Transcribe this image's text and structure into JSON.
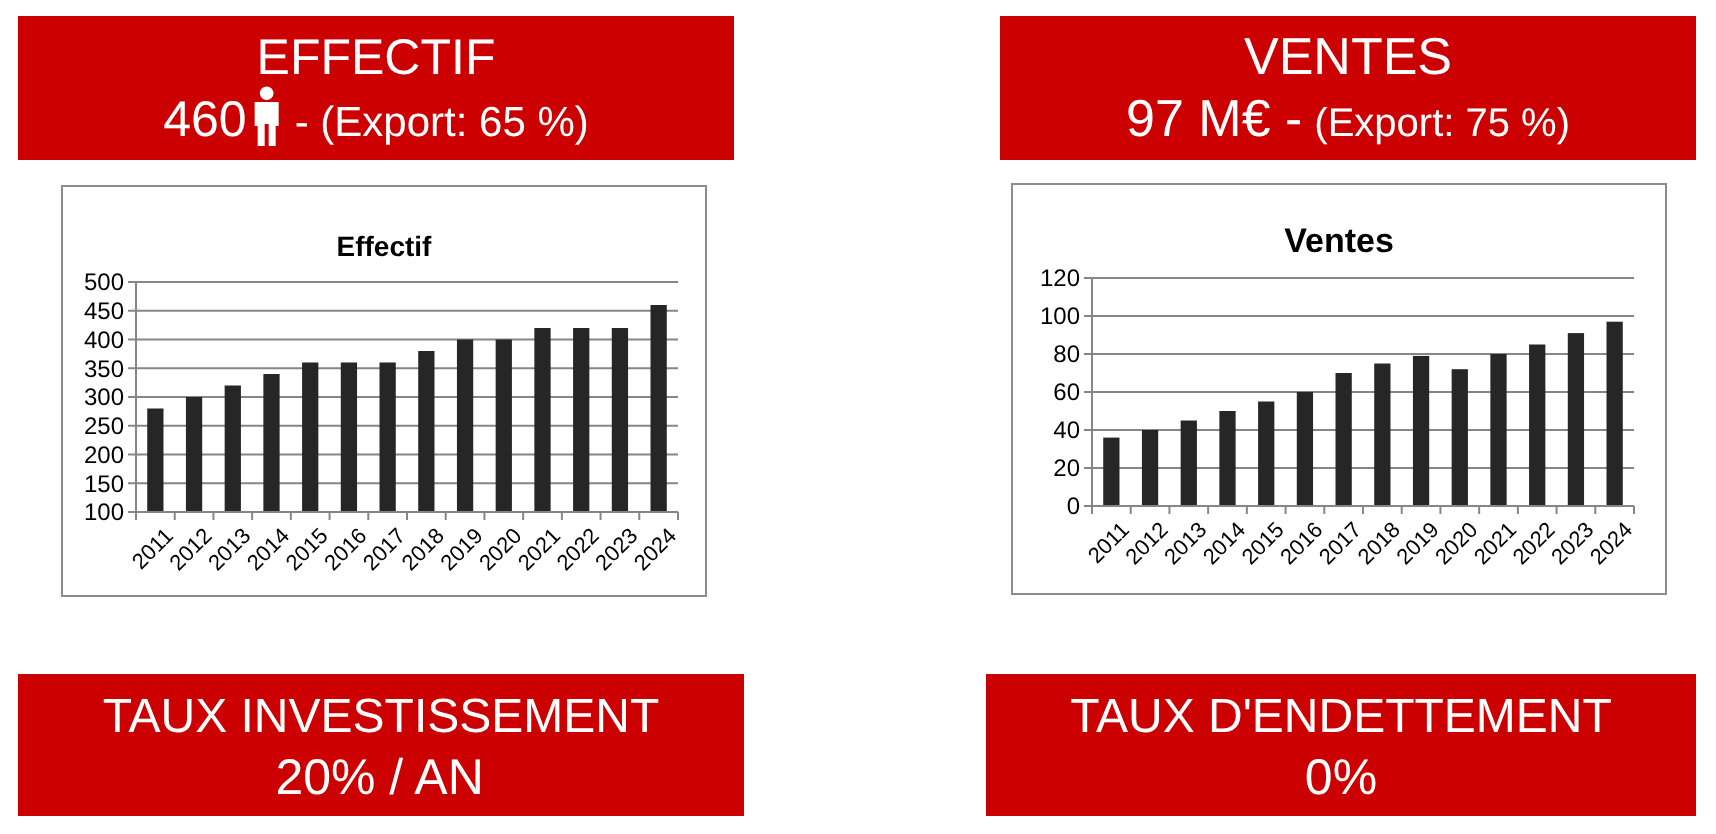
{
  "chart_data": [
    {
      "type": "other",
      "title": "EFFECTIF",
      "annotations": [
        "460",
        "- (Export: 65 %)"
      ],
      "color": "#cc0000"
    },
    {
      "type": "other",
      "title": "VENTES",
      "annotations": [
        "97 M€ -",
        "(Export: 75 %)"
      ],
      "color": "#cc0000"
    },
    {
      "type": "bar",
      "title": "Effectif",
      "categories": [
        "2011",
        "2012",
        "2013",
        "2014",
        "2015",
        "2016",
        "2017",
        "2018",
        "2019",
        "2020",
        "2021",
        "2022",
        "2023",
        "2024"
      ],
      "values": [
        280,
        300,
        320,
        340,
        360,
        360,
        360,
        380,
        400,
        400,
        420,
        420,
        420,
        460
      ],
      "color": "#262626",
      "ylim": [
        100,
        500
      ],
      "yticks": [
        100,
        150,
        200,
        250,
        300,
        350,
        400,
        450,
        500
      ],
      "grid": "y"
    },
    {
      "type": "bar",
      "title": "Ventes",
      "categories": [
        "2011",
        "2012",
        "2013",
        "2014",
        "2015",
        "2016",
        "2017",
        "2018",
        "2019",
        "2020",
        "2021",
        "2022",
        "2023",
        "2024"
      ],
      "values": [
        36,
        40,
        45,
        50,
        55,
        60,
        70,
        75,
        79,
        72,
        80,
        85,
        91,
        97
      ],
      "color": "#262626",
      "ylim": [
        0,
        120
      ],
      "yticks": [
        0,
        20,
        40,
        60,
        80,
        100,
        120
      ],
      "grid": "y"
    },
    {
      "type": "other",
      "title": "TAUX INVESTISSEMENT",
      "annotations": [
        "20% / AN"
      ],
      "color": "#cc0000"
    },
    {
      "type": "other",
      "title": "TAUX D'ENDETTEMENT",
      "annotations": [
        "0%"
      ],
      "color": "#cc0000"
    }
  ]
}
